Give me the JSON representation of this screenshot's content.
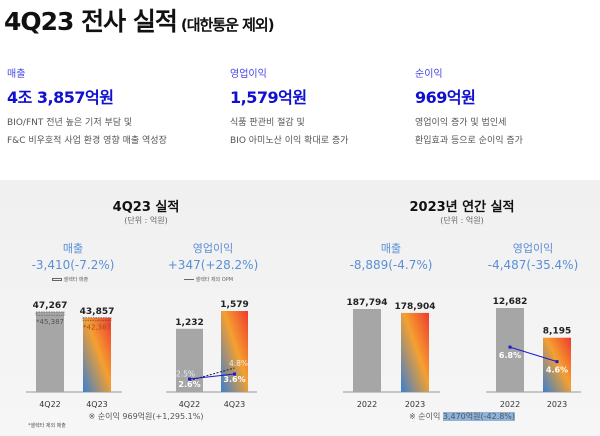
{
  "header": {
    "title": "4Q23 전사 실적",
    "subtitle": "(대한통운 제외)"
  },
  "kpis": [
    {
      "label": "매출",
      "value": "4조 3,857억원",
      "desc": [
        "BIO/FNT 전년 높은 기저 부담 및",
        "F&C 비우호적 사업 환경 영향 매출 역성장"
      ]
    },
    {
      "label": "영업이익",
      "value": "1,579억원",
      "desc": [
        "식품 판관비 절감 및",
        "BIO 아미노산 이익 확대로 증가"
      ]
    },
    {
      "label": "순이익",
      "value": "969억원",
      "desc": [
        "영업이익 증가 및 법인세",
        "환입효과 등으로 순이익 증가"
      ]
    }
  ],
  "sections": [
    {
      "title": "4Q23 실적",
      "unit": "(단위 : 억원)",
      "note": "※ 순이익 969억원(+1,295.1%)",
      "footnote": "*셀렉타 제외 매출"
    },
    {
      "title": "2023년 연간 실적",
      "unit": "(단위 : 억원)",
      "note_prefix": "※ 순이익 ",
      "note_highlight": "3,470억원(-42.8%)"
    }
  ],
  "colors": {
    "base_bar": "#a6a6a6",
    "gradient": [
      "#f03a2e",
      "#f5a030",
      "#3a7fd0"
    ],
    "opm_line": "#1a1ad0",
    "metric_text": "#5b8fd6"
  },
  "chart_data": [
    {
      "type": "bar",
      "title": "매출",
      "delta": "-3,410(-7.2%)",
      "legend": "셀렉타 매출",
      "categories": [
        "4Q22",
        "4Q23"
      ],
      "values": [
        47267,
        43857
      ],
      "value_labels": [
        "47,267",
        "43,857"
      ],
      "excl_selecta": [
        45387,
        42387
      ],
      "excl_labels": [
        "*45,387",
        "*42,387"
      ]
    },
    {
      "type": "bar",
      "title": "영업이익",
      "delta": "+347(+28.2%)",
      "legend": "셀렉타 제외 OPM",
      "categories": [
        "4Q22",
        "4Q23"
      ],
      "values": [
        1232,
        1579
      ],
      "value_labels": [
        "1,232",
        "1,579"
      ],
      "opm": [
        2.6,
        3.6
      ],
      "opm_labels": [
        "2.6%",
        "3.6%"
      ],
      "opm_excl": [
        2.5,
        4.8
      ],
      "opm_excl_labels": [
        "2.5%",
        "4.8%"
      ]
    },
    {
      "type": "bar",
      "title": "매출",
      "delta": "-8,889(-4.7%)",
      "categories": [
        "2022",
        "2023"
      ],
      "values": [
        187794,
        178904
      ],
      "value_labels": [
        "187,794",
        "178,904"
      ]
    },
    {
      "type": "bar",
      "title": "영업이익",
      "delta": "-4,487(-35.4%)",
      "categories": [
        "2022",
        "2023"
      ],
      "values": [
        12682,
        8195
      ],
      "value_labels": [
        "12,682",
        "8,195"
      ],
      "opm": [
        6.8,
        4.6
      ],
      "opm_labels": [
        "6.8%",
        "4.6%"
      ]
    }
  ]
}
